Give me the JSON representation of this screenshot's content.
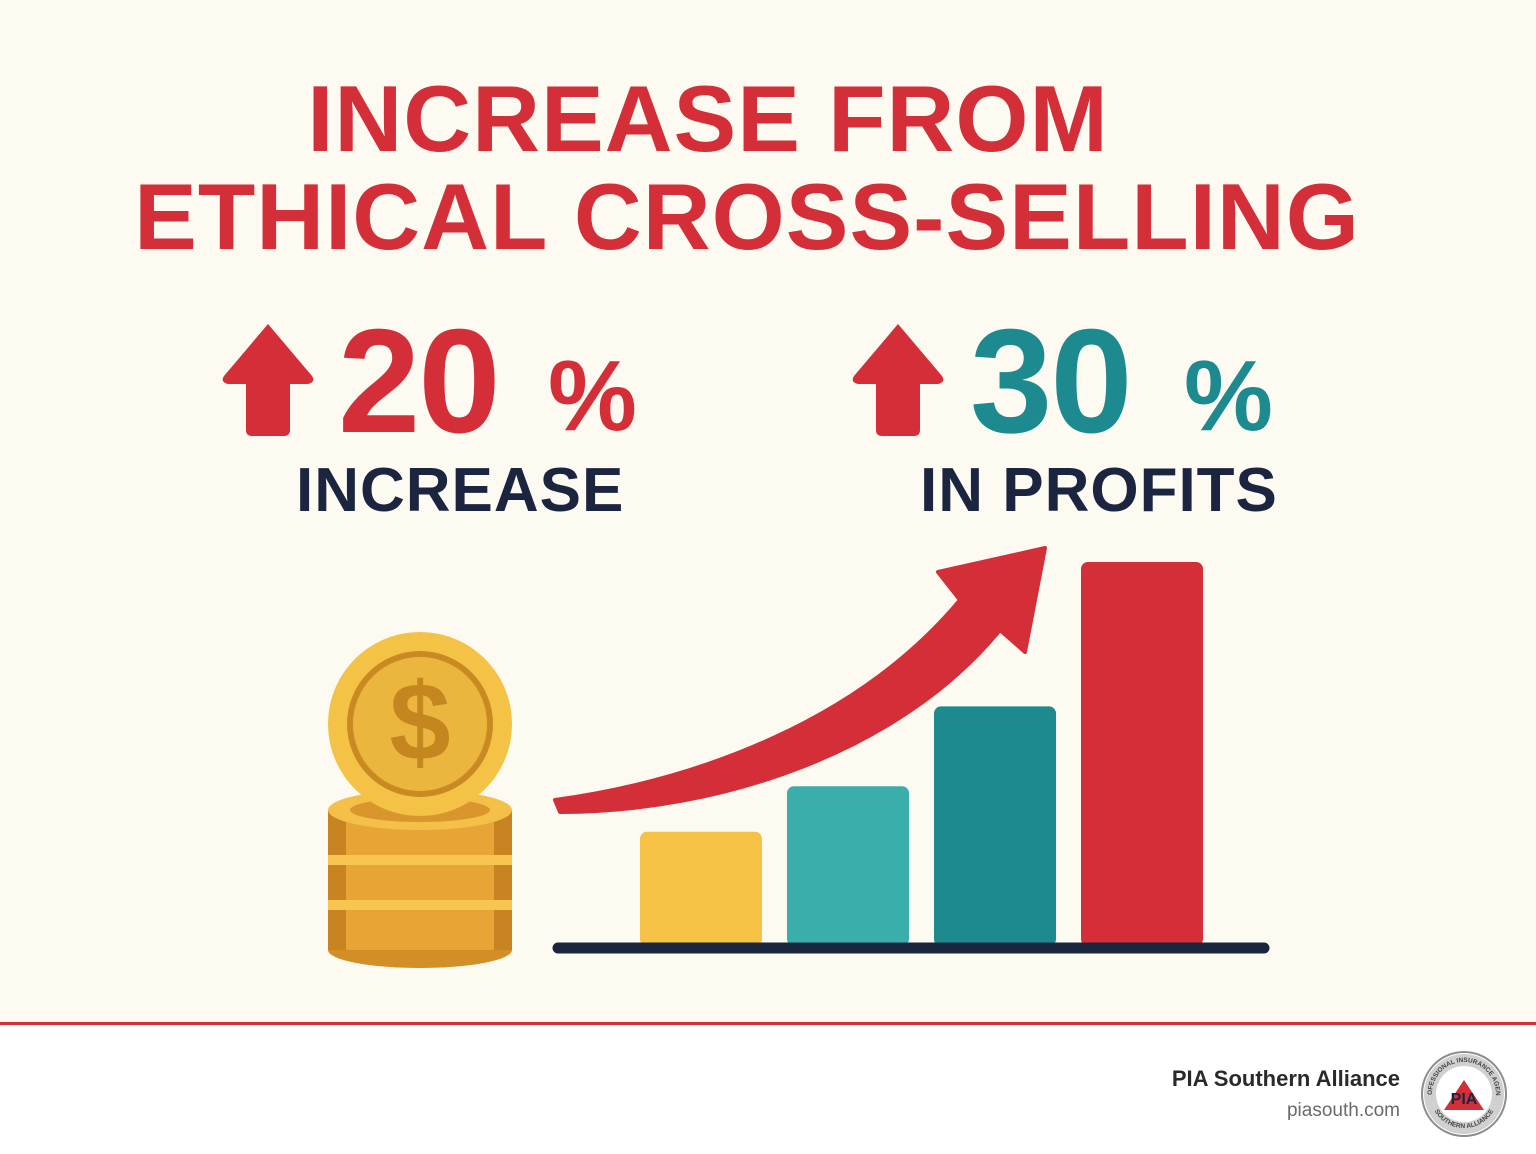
{
  "title": {
    "line1": "INCREASE FROM",
    "line2": "ETHICAL CROSS-SELLING"
  },
  "stats": [
    {
      "number": "20",
      "unit": "%",
      "caption": "INCREASE",
      "arrow_icon": "up-arrow-icon",
      "color": "#d42e38"
    },
    {
      "number": "30",
      "unit": "%",
      "caption": "IN PROFITS",
      "arrow_icon": "up-arrow-icon",
      "color": "#1c8a8e"
    }
  ],
  "illustration": {
    "coin_icon": "dollar-coin-stack-icon",
    "trend_icon": "trend-arrow-icon"
  },
  "chart_data": {
    "type": "bar",
    "categories": [
      "",
      "",
      "",
      ""
    ],
    "values": [
      29,
      41,
      62,
      100
    ],
    "colors": [
      "#f5c245",
      "#3aaeab",
      "#1c8a8e",
      "#d42e38"
    ],
    "title": "",
    "xlabel": "",
    "ylabel": "",
    "ylim": [
      0,
      100
    ],
    "grid": false
  },
  "colors": {
    "accent_red": "#d42e38",
    "accent_teal": "#1c8a8e",
    "navy": "#1c2540",
    "background": "#fdfaf2"
  },
  "footer": {
    "name": "PIA Southern Alliance",
    "url": "piasouth.com",
    "logo": {
      "ring_top": "PROFESSIONAL INSURANCE AGENTS",
      "ring_bottom": "SOUTHERN ALLIANCE",
      "mark": "PIA"
    }
  }
}
